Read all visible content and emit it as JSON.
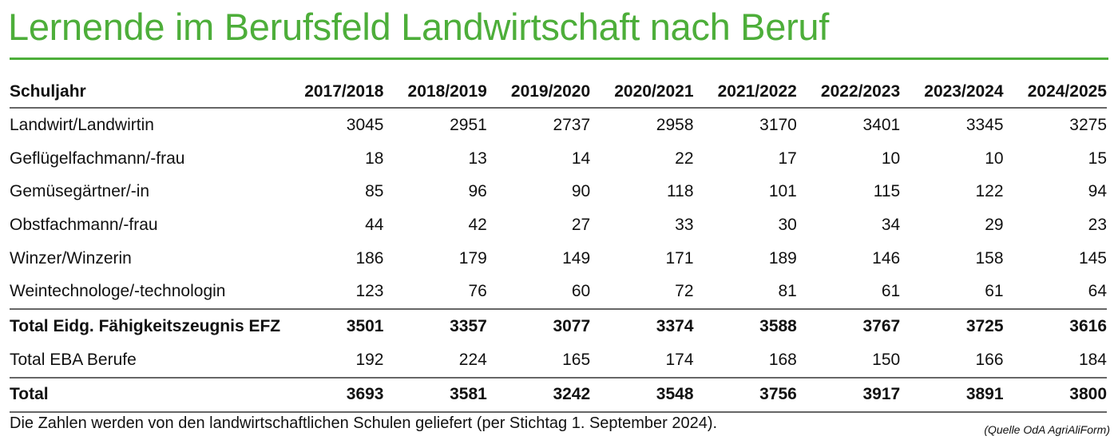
{
  "title": "Lernende im Berufsfeld Landwirtschaft nach Beruf",
  "accent_color": "#4dae3a",
  "table": {
    "columns": [
      "Schuljahr",
      "2017/2018",
      "2018/2019",
      "2019/2020",
      "2020/2021",
      "2021/2022",
      "2022/2023",
      "2023/2024",
      "2024/2025"
    ],
    "rows": [
      {
        "label": "Landwirt/Landwirtin",
        "values": [
          "3045",
          "2951",
          "2737",
          "2958",
          "3170",
          "3401",
          "3345",
          "3275"
        ]
      },
      {
        "label": "Geflügelfachmann/-frau",
        "values": [
          "18",
          "13",
          "14",
          "22",
          "17",
          "10",
          "10",
          "15"
        ]
      },
      {
        "label": "Gemüsegärtner/-in",
        "values": [
          "85",
          "96",
          "90",
          "118",
          "101",
          "115",
          "122",
          "94"
        ]
      },
      {
        "label": "Obstfachmann/-frau",
        "values": [
          "44",
          "42",
          "27",
          "33",
          "30",
          "34",
          "29",
          "23"
        ]
      },
      {
        "label": "Winzer/Winzerin",
        "values": [
          "186",
          "179",
          "149",
          "171",
          "189",
          "146",
          "158",
          "145"
        ]
      },
      {
        "label": "Weintechnologe/-technologin",
        "values": [
          "123",
          "76",
          "60",
          "72",
          "81",
          "61",
          "61",
          "64"
        ]
      },
      {
        "label": "Total Eidg. Fähigkeitszeugnis EFZ",
        "values": [
          "3501",
          "3357",
          "3077",
          "3374",
          "3588",
          "3767",
          "3725",
          "3616"
        ],
        "bold": true,
        "sep": true
      },
      {
        "label": "Total EBA Berufe",
        "values": [
          "192",
          "224",
          "165",
          "174",
          "168",
          "150",
          "166",
          "184"
        ]
      },
      {
        "label": "Total",
        "values": [
          "3693",
          "3581",
          "3242",
          "3548",
          "3756",
          "3917",
          "3891",
          "3800"
        ],
        "bold": true,
        "sep": true,
        "last": true
      }
    ]
  },
  "note": "Die Zahlen werden von den landwirtschaftlichen Schulen geliefert (per Stichtag 1. September 2024).",
  "source": "(Quelle OdA AgriAliForm)"
}
